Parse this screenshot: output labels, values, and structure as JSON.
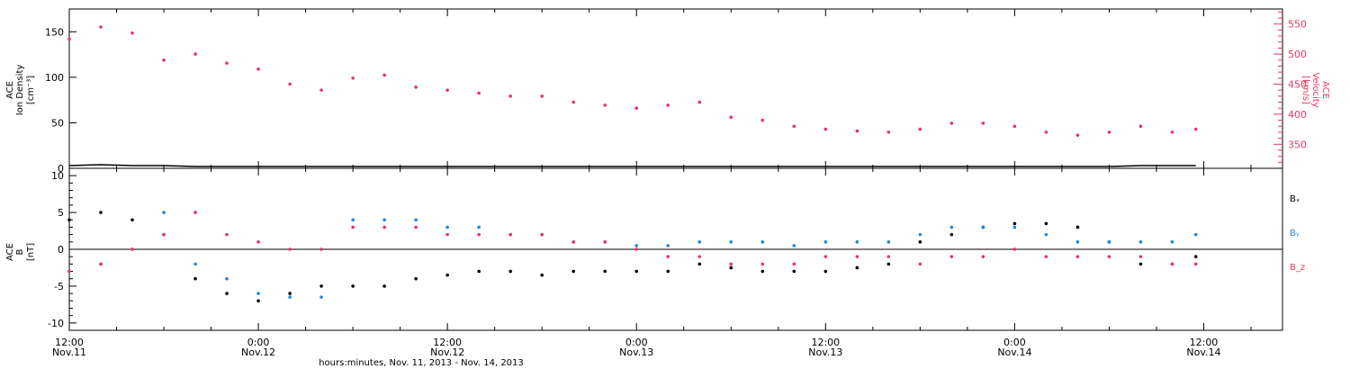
{
  "colors": {
    "axis": "#000000",
    "density": "#000000",
    "velocity": "#e8355e",
    "bx": "#000000",
    "by": "#1e88e5",
    "bz": "#e8355e"
  },
  "chart_data": [
    {
      "type": "scatter",
      "panel": "top",
      "left_ylabel": [
        "ACE",
        "Ion Density",
        "[cm⁻³]"
      ],
      "right_ylabel": [
        "ACE",
        "Velocity",
        "[km/s]"
      ],
      "ylim_left": [
        0,
        175
      ],
      "ylim_right": [
        310,
        575
      ],
      "yticks_left": [
        0,
        50,
        100,
        150
      ],
      "yticks_right": [
        350,
        400,
        450,
        500,
        550
      ],
      "x_hours": [
        0,
        2,
        4,
        6,
        8,
        10,
        12,
        14,
        16,
        18,
        20,
        22,
        24,
        26,
        28,
        30,
        32,
        34,
        36,
        38,
        40,
        42,
        44,
        46,
        48,
        50,
        52,
        54,
        56,
        58,
        60,
        62,
        64,
        66,
        68,
        70,
        71.5
      ],
      "series": [
        {
          "values": [
            525,
            545,
            535,
            490,
            500,
            485,
            475,
            450,
            440,
            460,
            465,
            445,
            440,
            435,
            430,
            430,
            420,
            415,
            410,
            415,
            420,
            395,
            390,
            380,
            375,
            372,
            370,
            375,
            385,
            385,
            380,
            370,
            365,
            370,
            380,
            370,
            375
          ]
        },
        {
          "values": [
            3,
            4,
            3,
            3,
            2,
            2,
            2,
            2,
            2,
            2,
            2,
            2,
            2,
            2,
            2,
            2,
            2,
            2,
            2,
            2,
            2,
            2,
            2,
            2,
            2,
            2,
            2,
            2,
            2,
            2,
            2,
            2,
            2,
            2,
            3,
            3,
            3
          ]
        }
      ],
      "grid": false
    },
    {
      "type": "scatter",
      "panel": "bottom",
      "left_ylabel": [
        "ACE",
        "B",
        "[nT]"
      ],
      "ylim": [
        -11,
        11
      ],
      "yticks": [
        -10,
        -5,
        0,
        5,
        10
      ],
      "x_hours": [
        0,
        2,
        4,
        6,
        8,
        10,
        12,
        14,
        16,
        18,
        20,
        22,
        24,
        26,
        28,
        30,
        32,
        34,
        36,
        38,
        40,
        42,
        44,
        46,
        48,
        50,
        52,
        54,
        56,
        58,
        60,
        62,
        64,
        66,
        68,
        70,
        71.5
      ],
      "series": [
        {
          "name": "Bₓ",
          "values": [
            4,
            5,
            4,
            2,
            -4,
            -6,
            -7,
            -6,
            -5,
            -5,
            -5,
            -4,
            -3.5,
            -3,
            -3,
            -3.5,
            -3,
            -3,
            -3,
            -3,
            -2,
            -2.5,
            -3,
            -3,
            -3,
            -2.5,
            -2,
            1,
            2,
            3,
            3.5,
            3.5,
            3,
            1,
            -2,
            -2,
            -1
          ]
        },
        {
          "name": "Bᵧ",
          "values": [
            -3,
            -2,
            0,
            5,
            -2,
            -4,
            -6,
            -6.5,
            -6.5,
            4,
            4,
            4,
            3,
            3,
            2,
            2,
            1,
            1,
            0.5,
            0.5,
            1,
            1,
            1,
            0.5,
            1,
            1,
            1,
            2,
            3,
            3,
            3,
            2,
            1,
            1,
            1,
            1,
            2
          ]
        },
        {
          "name": "B_z",
          "values": [
            -3,
            -2,
            0,
            2,
            5,
            2,
            1,
            0,
            0,
            3,
            3,
            3,
            2,
            2,
            2,
            2,
            1,
            1,
            0,
            -1,
            -1,
            -2,
            -2,
            -2,
            -1,
            -1,
            -1,
            -2,
            -1,
            -1,
            0,
            -1,
            -1,
            -1,
            -1,
            -2,
            -2
          ]
        }
      ],
      "legend": "right",
      "grid": false
    }
  ],
  "x_axis": {
    "ticks": [
      {
        "hour": 0,
        "time": "12:00",
        "date": "Nov.11"
      },
      {
        "hour": 12,
        "time": "0:00",
        "date": "Nov.12"
      },
      {
        "hour": 24,
        "time": "12:00",
        "date": "Nov.12"
      },
      {
        "hour": 36,
        "time": "0:00",
        "date": "Nov.13"
      },
      {
        "hour": 48,
        "time": "12:00",
        "date": "Nov.13"
      },
      {
        "hour": 60,
        "time": "0:00",
        "date": "Nov.14"
      },
      {
        "hour": 72,
        "time": "12:00",
        "date": "Nov.14"
      }
    ],
    "xlim_hours": [
      0,
      77
    ],
    "label": "hours:minutes, Nov. 11, 2013 - Nov. 14, 2013"
  }
}
